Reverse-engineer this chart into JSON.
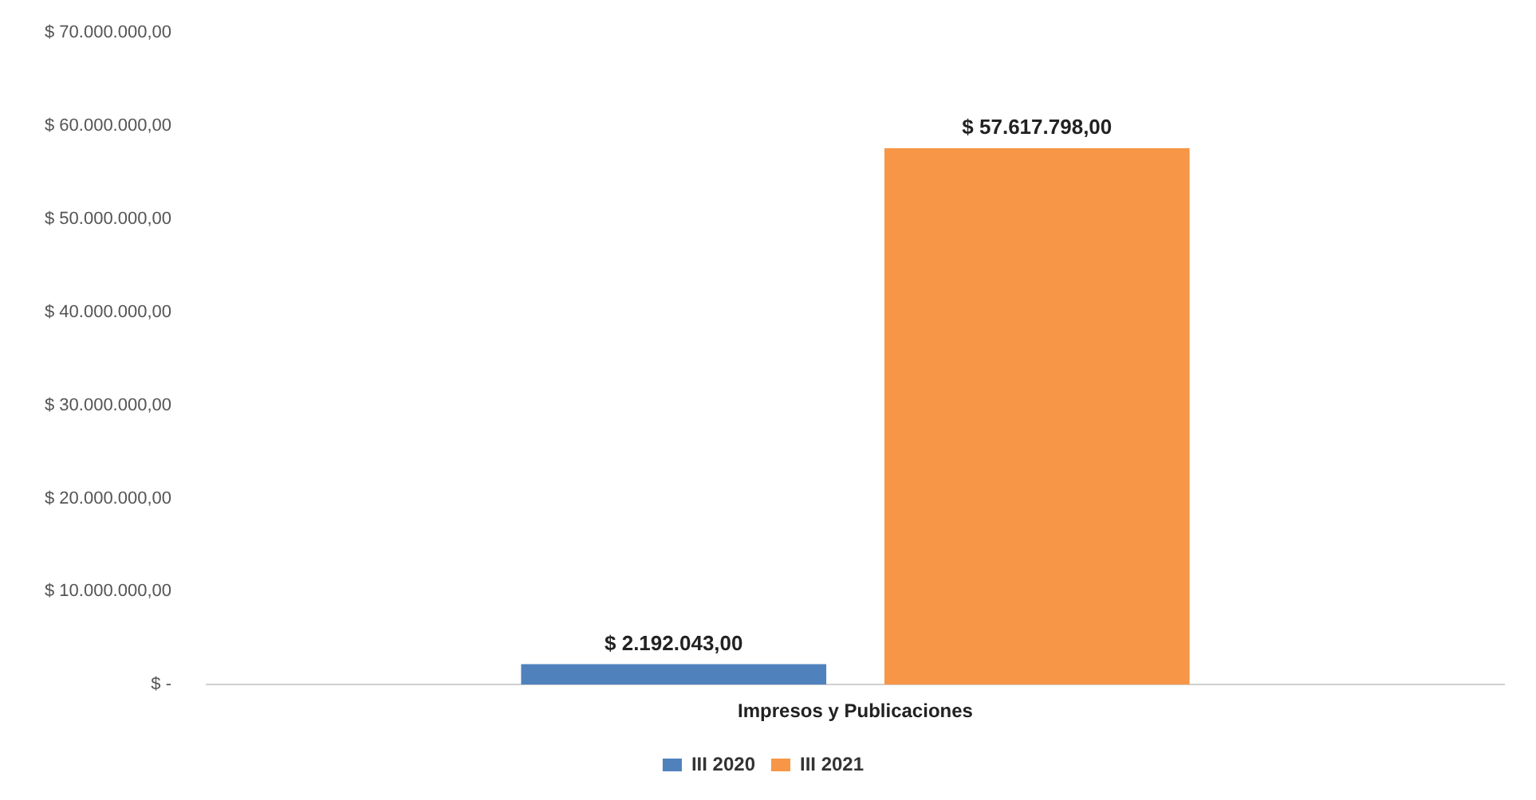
{
  "chart_data": {
    "type": "bar",
    "categories": [
      "Impresos y Publicaciones"
    ],
    "series": [
      {
        "name": "III 2020",
        "color": "#4f81bd",
        "values": [
          2192043
        ],
        "value_labels": [
          "$ 2.192.043,00"
        ]
      },
      {
        "name": "III 2021",
        "color": "#f79646",
        "values": [
          57617798
        ],
        "value_labels": [
          "$ 57.617.798,00"
        ]
      }
    ],
    "ylim": [
      0,
      70000000
    ],
    "yticks": [
      {
        "value": 0,
        "label": "$ -"
      },
      {
        "value": 10000000,
        "label": "$ 10.000.000,00"
      },
      {
        "value": 20000000,
        "label": "$ 20.000.000,00"
      },
      {
        "value": 30000000,
        "label": "$ 30.000.000,00"
      },
      {
        "value": 40000000,
        "label": "$ 40.000.000,00"
      },
      {
        "value": 50000000,
        "label": "$ 50.000.000,00"
      },
      {
        "value": 60000000,
        "label": "$ 60.000.000,00"
      },
      {
        "value": 70000000,
        "label": "$ 70.000.000,00"
      }
    ],
    "grid": false,
    "legend": "bottom"
  }
}
